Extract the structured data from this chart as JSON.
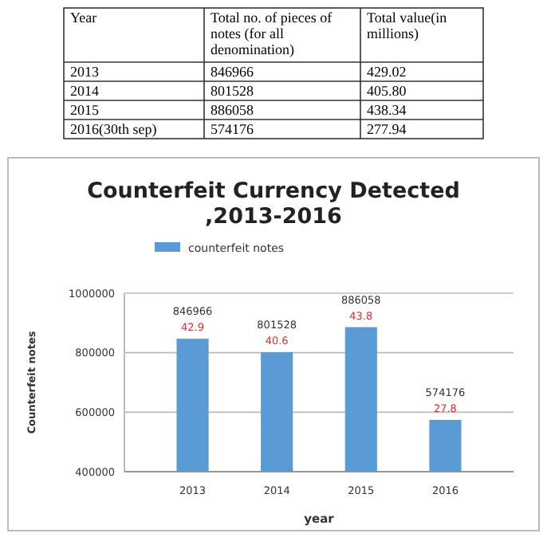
{
  "chart_data": [
    {
      "type": "other",
      "categories": [
        "Year",
        "Total no. of pieces of notes (for all denomination)",
        "Total value(in millions)"
      ],
      "cell_labels": [
        [
          "2013",
          "846966",
          "429.02"
        ],
        [
          "2014",
          "801528",
          "405.80"
        ],
        [
          "2015",
          "886058",
          "438.34"
        ],
        [
          "2016(30th sep)",
          "574176",
          "277.94"
        ]
      ]
    },
    {
      "type": "bar",
      "title": "Counterfeit  Currency Detected ,2013-2016",
      "xlabel": "year",
      "ylabel": "Counterfeit notes",
      "categories": [
        "2013",
        "2014",
        "2015",
        "2016"
      ],
      "series": [
        {
          "name": "counterfeit notes",
          "color": "#5b9bd5",
          "values": [
            846966,
            801528,
            886058,
            574176
          ]
        }
      ],
      "ylim": [
        400000,
        1000000
      ],
      "yticks": [
        400000,
        600000,
        800000,
        1000000
      ],
      "grid": "y",
      "legend": "top",
      "data_labels": true,
      "annotations": [
        {
          "text": "42.9",
          "x": "2013",
          "y": 846966
        },
        {
          "text": "40.6",
          "x": "2014",
          "y": 801528
        },
        {
          "text": "43.8",
          "x": "2015",
          "y": 886058
        },
        {
          "text": "27.8",
          "x": "2016",
          "y": 574176
        }
      ]
    }
  ]
}
